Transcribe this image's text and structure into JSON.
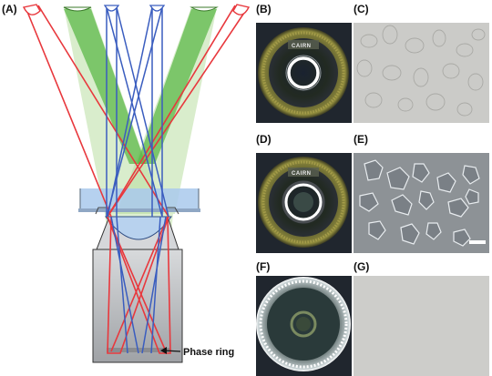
{
  "panels": {
    "a": "(A)",
    "b": "(B)",
    "c": "(C)",
    "d": "(D)",
    "e": "(E)",
    "f": "(F)",
    "g": "(G)"
  },
  "annotations": {
    "phase_ring": "Phase ring"
  },
  "logo": {
    "text_b": "CAIRN",
    "text_d": "CAIRN"
  },
  "colors": {
    "red_ray": "#e8383d",
    "blue_ray": "#3a5dbf",
    "green_beam": "#5cb84a",
    "green_fill": "#b9dfa3",
    "objective_fill": "#b9bcc0",
    "dish_water": "#a9c9ec"
  }
}
